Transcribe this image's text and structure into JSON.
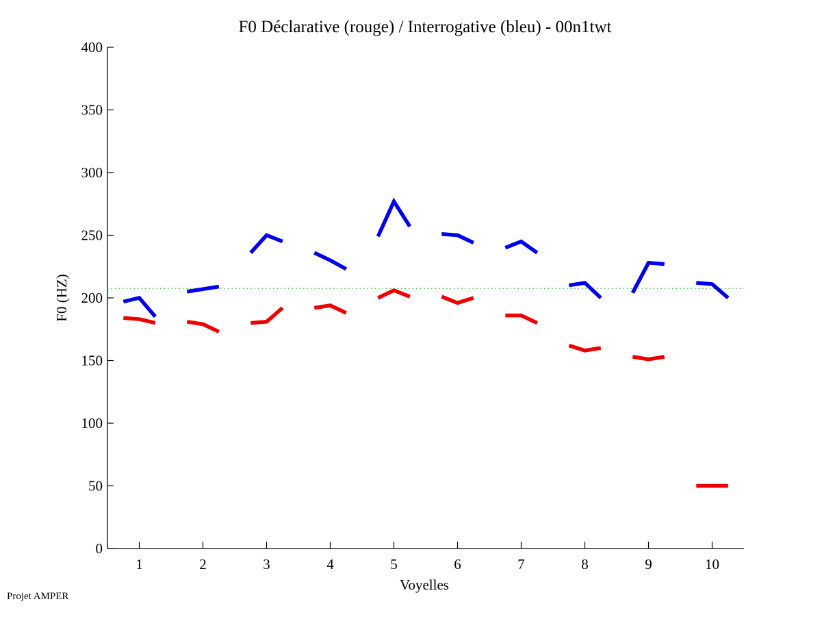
{
  "chart_data": {
    "type": "line",
    "title": "F0 Déclarative (rouge) / Interrogative (bleu) - 00n1twt",
    "xlabel": "Voyelles",
    "ylabel": "F0 (HZ)",
    "xlim": [
      0.5,
      10.5
    ],
    "ylim": [
      0,
      400
    ],
    "x_ticks": [
      1,
      2,
      3,
      4,
      5,
      6,
      7,
      8,
      9,
      10
    ],
    "x_tick_labels": [
      "1",
      "2",
      "3",
      "4",
      "5",
      "6",
      "7",
      "8",
      "9",
      "10"
    ],
    "y_ticks": [
      0,
      50,
      100,
      150,
      200,
      250,
      300,
      350,
      400
    ],
    "y_tick_labels": [
      "0",
      "50",
      "100",
      "150",
      "200",
      "250",
      "300",
      "350",
      "400"
    ],
    "grid": false,
    "point_offsets": [
      -0.25,
      0,
      0.25
    ],
    "reference_line": {
      "value": 207.5,
      "color": "#33cc33",
      "style": "dotted"
    },
    "series": [
      {
        "name": "Interrogative (bleu)",
        "color": "#0000ee",
        "segments": [
          [
            197,
            200,
            185
          ],
          [
            205,
            207,
            209
          ],
          [
            236,
            250,
            245
          ],
          [
            236,
            230,
            223
          ],
          [
            249,
            277,
            257
          ],
          [
            251,
            250,
            244
          ],
          [
            240,
            245,
            236
          ],
          [
            210,
            212,
            200
          ],
          [
            204,
            228,
            227
          ],
          [
            212,
            211,
            200
          ]
        ]
      },
      {
        "name": "Déclarative (rouge)",
        "color": "#ee0000",
        "segments": [
          [
            184,
            183,
            180
          ],
          [
            181,
            179,
            173
          ],
          [
            180,
            181,
            192
          ],
          [
            192,
            194,
            188
          ],
          [
            200,
            206,
            201
          ],
          [
            201,
            196,
            200
          ],
          [
            186,
            186,
            180
          ],
          [
            162,
            158,
            160
          ],
          [
            153,
            151,
            153
          ],
          [
            50,
            50,
            50
          ]
        ]
      }
    ]
  },
  "footer": {
    "text": "Projet AMPER"
  }
}
